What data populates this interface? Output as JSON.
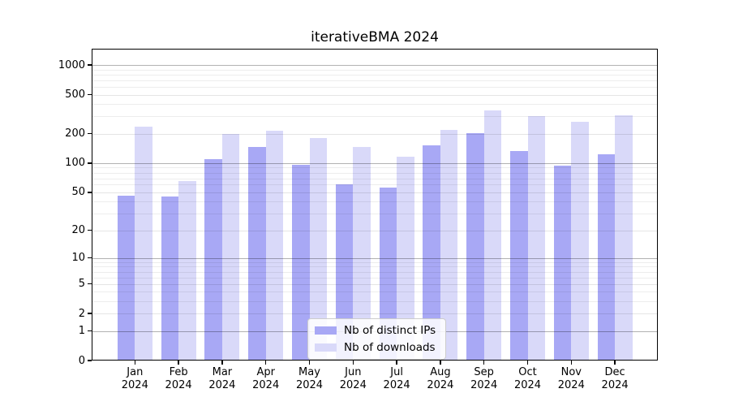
{
  "chart_data": {
    "type": "bar",
    "title": "iterativeBMA 2024",
    "categories": [
      "Jan 2024",
      "Feb 2024",
      "Mar 2024",
      "Apr 2024",
      "May 2024",
      "Jun 2024",
      "Jul 2024",
      "Aug 2024",
      "Sep 2024",
      "Oct 2024",
      "Nov 2024",
      "Dec 2024"
    ],
    "series": [
      {
        "name": "Nb of distinct IPs",
        "color": "#a8a8f5",
        "values": [
          46,
          45,
          110,
          147,
          97,
          60,
          56,
          153,
          203,
          134,
          94,
          123
        ]
      },
      {
        "name": "Nb of downloads",
        "color": "#d9d9f9",
        "values": [
          236,
          66,
          200,
          213,
          182,
          146,
          116,
          220,
          347,
          300,
          264,
          310
        ]
      }
    ],
    "xlabel": "",
    "ylabel": "",
    "yscale": "log1p",
    "yticks": [
      0,
      1,
      2,
      5,
      10,
      20,
      50,
      100,
      200,
      500,
      1000
    ],
    "decade_ticks": [
      1,
      10,
      100,
      1000
    ],
    "minor_tick_mantissas": [
      3,
      4,
      6,
      7,
      8,
      9
    ],
    "ylim": [
      0,
      1464
    ],
    "grid": true,
    "grid_over_bars": true,
    "legend_position": "lower center inset"
  },
  "colors": {
    "frame": "#000000",
    "decade_grid": "rgba(0,0,0,0.30)",
    "major_grid": "rgba(0,0,0,0.10)",
    "minor_grid": "rgba(0,0,0,0.07)",
    "text": "#000000"
  }
}
